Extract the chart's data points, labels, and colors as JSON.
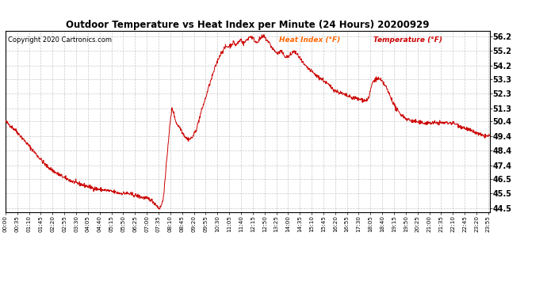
{
  "title": "Outdoor Temperature vs Heat Index per Minute (24 Hours) 20200929",
  "copyright_text": "Copyright 2020 Cartronics.com",
  "legend_heat_index": "Heat Index (°F)",
  "legend_temperature": "Temperature (°F)",
  "line_color": "#cc0000",
  "background_color": "#ffffff",
  "grid_color": "#bbbbbb",
  "title_color": "#000000",
  "copyright_color": "#000000",
  "legend_hi_color": "#ff6600",
  "legend_temp_color": "#cc0000",
  "yticks": [
    44.5,
    45.5,
    46.5,
    47.4,
    48.4,
    49.4,
    50.4,
    51.3,
    52.3,
    53.3,
    54.2,
    55.2,
    56.2
  ],
  "ymin": 44.2,
  "ymax": 56.55,
  "total_minutes": 1440,
  "tick_interval": 35
}
